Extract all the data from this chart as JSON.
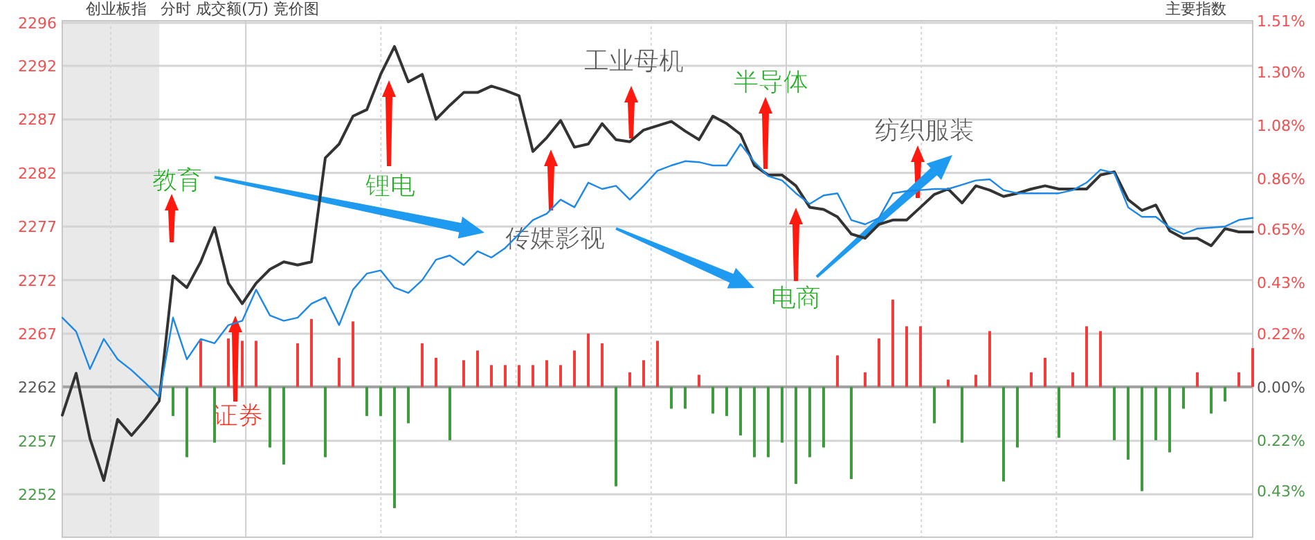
{
  "chart_data": {
    "type": "line",
    "title": "创业板指",
    "subtitle": "分时 成交额(万) 竞价图",
    "annotations": [
      "教育",
      "锂电",
      "工业母机",
      "半导体",
      "传媒影视",
      "电商",
      "纺织服装",
      "证券",
      "主要指数"
    ],
    "categories": [
      null,
      null,
      null,
      null,
      null,
      null,
      null,
      null,
      null,
      null,
      null,
      null,
      null,
      null,
      null,
      null,
      null,
      null,
      null,
      null,
      null,
      null,
      null,
      null,
      null,
      null,
      null,
      null,
      null,
      null,
      null,
      null,
      null,
      null,
      null,
      null,
      null,
      null,
      null,
      null,
      null,
      null,
      null,
      null,
      null,
      null,
      null,
      null,
      null,
      null,
      null,
      null,
      null,
      null,
      null,
      null,
      null,
      null,
      null,
      null,
      null,
      null,
      null,
      null,
      null,
      null,
      null,
      null,
      null,
      null,
      null,
      null,
      null,
      null,
      null,
      null,
      null,
      null,
      null,
      null,
      null,
      null,
      null,
      null,
      null,
      null,
      null
    ],
    "series": [
      {
        "color": "#333333",
        "values": [
          2259.4,
          2263.3,
          2257.2,
          2253.3,
          2259.0,
          2257.5,
          2259.0,
          2260.7,
          2272.4,
          2271.3,
          2273.7,
          2276.9,
          2271.7,
          2269.8,
          2271.7,
          2273.0,
          2273.7,
          2273.4,
          2273.7,
          2283.4,
          2284.7,
          2287.3,
          2287.9,
          2291.2,
          2293.8,
          2290.5,
          2291.2,
          2287.0,
          2288.3,
          2289.5,
          2289.5,
          2290.1,
          2289.7,
          2289.2,
          2284.0,
          2285.3,
          2286.9,
          2284.4,
          2284.7,
          2286.6,
          2285.1,
          2284.9,
          2286.0,
          2286.4,
          2286.8,
          2285.9,
          2285.1,
          2287.3,
          2286.6,
          2285.6,
          2282.7,
          2281.8,
          2281.8,
          2280.8,
          2278.8,
          2278.6,
          2277.9,
          2276.3,
          2275.9,
          2277.2,
          2277.6,
          2277.6,
          2278.8,
          2280.0,
          2280.5,
          2279.2,
          2280.8,
          2280.4,
          2279.8,
          2280.1,
          2280.5,
          2280.8,
          2280.5,
          2280.5,
          2280.5,
          2281.8,
          2282.1,
          2279.5,
          2278.5,
          2279.0,
          2276.6,
          2275.9,
          2275.9,
          2275.2,
          2276.8,
          2276.5,
          2276.5
        ]
      },
      {
        "color": "#1e88e5",
        "values": [
          2268.5,
          2267.2,
          2263.7,
          2266.5,
          2264.6,
          2263.6,
          2262.4,
          2261.1,
          2268.5,
          2264.6,
          2266.5,
          2266.1,
          2267.8,
          2268.2,
          2271.1,
          2268.7,
          2268.2,
          2268.5,
          2269.8,
          2270.4,
          2267.8,
          2271.1,
          2272.6,
          2272.9,
          2271.3,
          2270.8,
          2272.0,
          2273.9,
          2274.3,
          2273.4,
          2274.7,
          2274.1,
          2275.0,
          2276.3,
          2277.6,
          2278.2,
          2279.5,
          2278.8,
          2281.1,
          2280.5,
          2280.8,
          2279.5,
          2280.8,
          2282.2,
          2282.7,
          2283.1,
          2283.0,
          2282.7,
          2282.7,
          2284.7,
          2283.0,
          2281.7,
          2281.3,
          2280.1,
          2279.1,
          2279.9,
          2280.1,
          2277.6,
          2277.2,
          2277.8,
          2280.1,
          2280.3,
          2280.4,
          2280.5,
          2280.5,
          2280.9,
          2281.3,
          2281.4,
          2280.4,
          2280.1,
          2280.1,
          2280.1,
          2280.1,
          2280.4,
          2281.1,
          2282.3,
          2282.0,
          2278.8,
          2277.9,
          2277.9,
          2276.9,
          2276.3,
          2276.8,
          2276.9,
          2277.0,
          2277.6,
          2277.8
        ]
      },
      {
        "type": "bar",
        "axis": "y2",
        "values": [
          null,
          null,
          null,
          null,
          null,
          null,
          null,
          null,
          -0.12,
          -0.29,
          0.19,
          -0.23,
          0.2,
          0.19,
          0.19,
          -0.25,
          -0.32,
          0.18,
          0.28,
          -0.29,
          0.12,
          0.27,
          -0.12,
          -0.12,
          -0.5,
          -0.15,
          0.18,
          0.12,
          -0.22,
          0.11,
          0.15,
          0.09,
          0.09,
          0.09,
          0.09,
          0.11,
          0.09,
          0.15,
          0.22,
          0.18,
          -0.41,
          0.06,
          0.11,
          0.19,
          -0.09,
          -0.09,
          0.05,
          -0.11,
          -0.12,
          -0.2,
          -0.29,
          -0.29,
          -0.23,
          -0.4,
          -0.29,
          -0.25,
          0.13,
          -0.38,
          0.06,
          0.2,
          0.36,
          0.25,
          0.25,
          -0.15,
          0.03,
          -0.23,
          0.05,
          0.23,
          -0.39,
          -0.25,
          0.06,
          0.12,
          -0.21,
          0.06,
          0.25,
          0.23,
          -0.22,
          -0.3,
          -0.43,
          -0.22,
          -0.27,
          -0.09,
          0.06,
          -0.11,
          -0.06,
          0.06,
          0.16
        ],
        "colors": [
          null,
          null,
          null,
          null,
          null,
          null,
          null,
          null,
          "#3d9a3d",
          "#3d9a3d",
          "#f23c3c",
          "#3d9a3d",
          "#f23c3c",
          "#f23c3c",
          "#f23c3c",
          "#3d9a3d",
          "#3d9a3d",
          "#f23c3c",
          "#f23c3c",
          "#3d9a3d",
          "#f23c3c",
          "#f23c3c",
          "#3d9a3d",
          "#3d9a3d",
          "#3d9a3d",
          "#3d9a3d",
          "#f23c3c",
          "#f23c3c",
          "#3d9a3d",
          "#f23c3c",
          "#f23c3c",
          "#f23c3c",
          "#f23c3c",
          "#f23c3c",
          "#f23c3c",
          "#f23c3c",
          "#f23c3c",
          "#f23c3c",
          "#f23c3c",
          "#f23c3c",
          "#3d9a3d",
          "#f23c3c",
          "#f23c3c",
          "#f23c3c",
          "#3d9a3d",
          "#3d9a3d",
          "#f23c3c",
          "#3d9a3d",
          "#3d9a3d",
          "#3d9a3d",
          "#3d9a3d",
          "#3d9a3d",
          "#3d9a3d",
          "#3d9a3d",
          "#3d9a3d",
          "#3d9a3d",
          "#f23c3c",
          "#3d9a3d",
          "#f23c3c",
          "#f23c3c",
          "#f23c3c",
          "#f23c3c",
          "#f23c3c",
          "#3d9a3d",
          "#f23c3c",
          "#3d9a3d",
          "#f23c3c",
          "#f23c3c",
          "#3d9a3d",
          "#3d9a3d",
          "#f23c3c",
          "#f23c3c",
          "#3d9a3d",
          "#f23c3c",
          "#f23c3c",
          "#f23c3c",
          "#3d9a3d",
          "#3d9a3d",
          "#3d9a3d",
          "#3d9a3d",
          "#3d9a3d",
          "#3d9a3d",
          "#f23c3c",
          "#3d9a3d",
          "#3d9a3d",
          "#f23c3c",
          "#f23c3c"
        ]
      }
    ],
    "ylim": [
      2248,
      2296.2
    ],
    "yticks": [
      2296,
      2292,
      2287,
      2282,
      2277,
      2272,
      2267,
      2262,
      2257,
      2252
    ],
    "y2lim": [
      -0.62,
      1.51
    ],
    "y2ticks": [
      {
        "value": 1.51,
        "label": "1.51%"
      },
      {
        "value": 1.3,
        "label": "1.30%"
      },
      {
        "value": 1.08,
        "label": "1.08%"
      },
      {
        "value": 0.86,
        "label": "0.86%"
      },
      {
        "value": 0.65,
        "label": "0.65%"
      },
      {
        "value": 0.43,
        "label": "0.43%"
      },
      {
        "value": 0.22,
        "label": "0.22%"
      },
      {
        "value": 0,
        "label": "0.00%"
      },
      {
        "value": -0.22,
        "label": "0.22%"
      },
      {
        "value": -0.43,
        "label": "0.43%"
      }
    ],
    "ref_lines": [
      {
        "axis": "y2",
        "value": 0,
        "color": "#a0a0a0"
      }
    ],
    "grid": true
  }
}
